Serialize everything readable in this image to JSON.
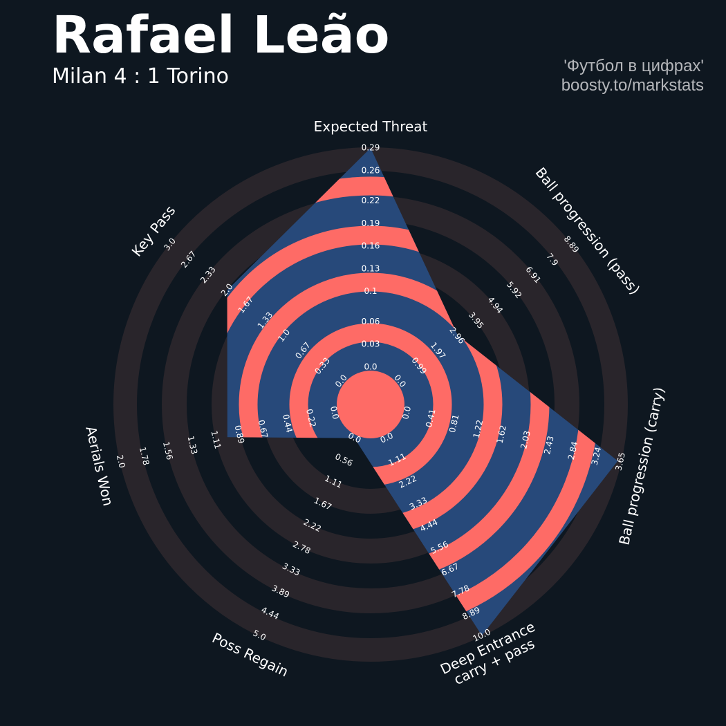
{
  "chart_data": {
    "type": "radar",
    "title": "Rafael Leão",
    "subtitle": "Milan 4 : 1 Torino",
    "credits": [
      "'Футбол в цифрах'",
      "boosty.to/markstats"
    ],
    "params": [
      "Expected Threat",
      "Ball progression (pass)",
      "Ball progression (carry)",
      "Deep Entrance\ncarry + pass",
      "Poss Regain",
      "Aerials Won",
      "Key Pass"
    ],
    "values": [
      0.29,
      3.0,
      3.6,
      10.0,
      0.0,
      1.0,
      2.0
    ],
    "lims": [
      [
        0,
        0.29
      ],
      [
        0,
        8.89
      ],
      [
        0,
        3.65
      ],
      [
        0,
        10
      ],
      [
        0,
        5
      ],
      [
        0,
        2
      ],
      [
        0,
        3
      ]
    ],
    "ticks": [
      [
        {
          "value": 0,
          "label": "0.0"
        },
        0.03,
        0.06,
        0.1,
        0.13,
        0.16,
        0.19,
        0.22,
        0.26,
        0.29
      ],
      [
        {
          "value": 0,
          "label": "0.0"
        },
        0.99,
        1.97,
        2.96,
        3.95,
        4.94,
        5.92,
        6.91,
        7.9,
        8.89
      ],
      [
        {
          "value": 0,
          "label": "0.0"
        },
        0.41,
        0.81,
        1.22,
        1.62,
        2.03,
        2.43,
        2.84,
        3.24,
        3.65
      ],
      [
        {
          "value": 0,
          "label": "0.0"
        },
        1.11,
        2.22,
        3.33,
        4.44,
        5.56,
        6.67,
        7.78,
        8.89,
        {
          "value": 10,
          "label": "10.0"
        }
      ],
      [
        {
          "value": 0,
          "label": "0.0"
        },
        0.56,
        1.11,
        1.67,
        2.22,
        2.78,
        3.33,
        3.89,
        4.44,
        {
          "value": 5,
          "label": "5.0"
        }
      ],
      [
        {
          "value": 0,
          "label": "0.0"
        },
        0.22,
        0.44,
        0.67,
        0.89,
        1.11,
        1.33,
        1.56,
        1.78,
        {
          "value": 2,
          "label": "2.0"
        }
      ],
      [
        {
          "value": 0,
          "label": "0.0"
        },
        0.33,
        0.67,
        {
          "value": 1,
          "label": "1.0"
        },
        1.33,
        1.67,
        {
          "value": 2,
          "label": "2.0"
        },
        2.33,
        2.67,
        {
          "value": 3,
          "label": "3.0"
        }
      ]
    ],
    "color": "#27497a",
    "ring_color": "#fe6b66",
    "background_ring_color": "#29252b"
  }
}
